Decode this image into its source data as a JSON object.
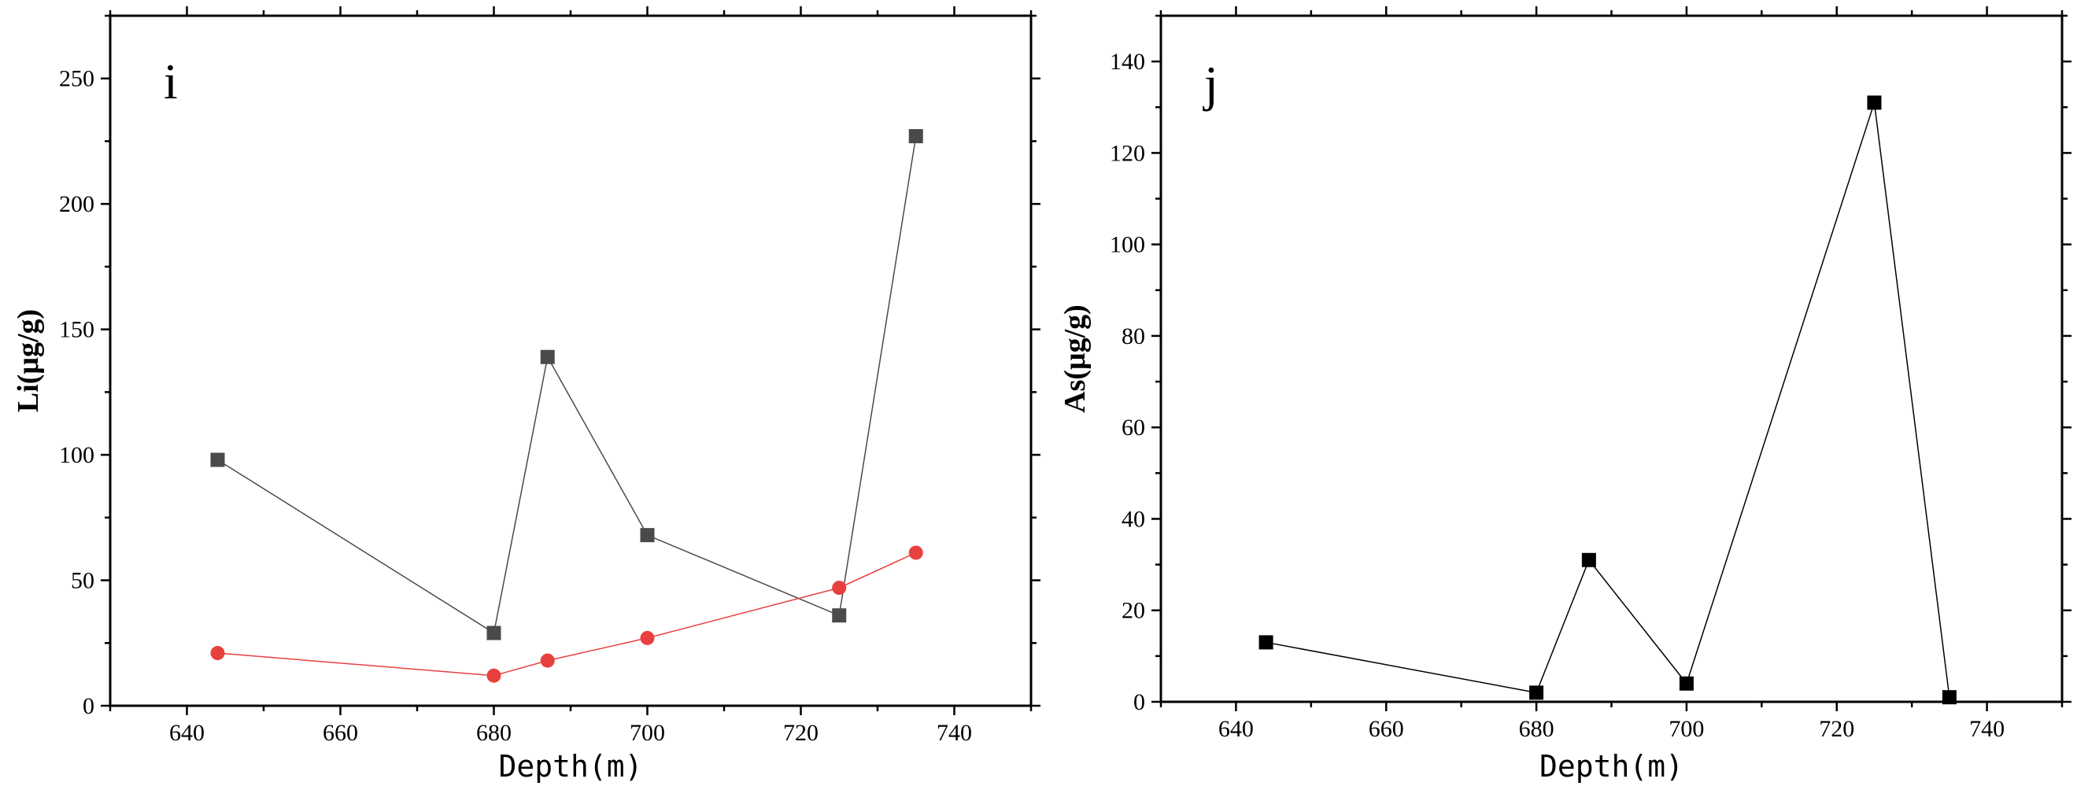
{
  "chart_data": [
    {
      "type": "line",
      "panel_label": "i",
      "xlabel": "Depth(m)",
      "ylabel": "Li(μg/g)",
      "xlim": [
        630,
        750
      ],
      "ylim": [
        0,
        275
      ],
      "xticks": [
        640,
        660,
        680,
        700,
        720,
        740
      ],
      "yticks": [
        0,
        50,
        100,
        150,
        200,
        250
      ],
      "grid": false,
      "legend": "none",
      "series": [
        {
          "color": "#4a4a4a",
          "marker": "square",
          "x": [
            644,
            680,
            687,
            700,
            725,
            735
          ],
          "y": [
            98,
            29,
            139,
            68,
            36,
            227
          ]
        },
        {
          "color": "#e8403f",
          "marker": "circle",
          "x": [
            644,
            680,
            687,
            700,
            725,
            735
          ],
          "y": [
            21,
            12,
            18,
            27,
            47,
            61
          ]
        }
      ]
    },
    {
      "type": "line",
      "panel_label": "j",
      "xlabel": "Depth(m)",
      "ylabel": "As(μg/g)",
      "xlim": [
        630,
        750
      ],
      "ylim": [
        0,
        150
      ],
      "xticks": [
        640,
        660,
        680,
        700,
        720,
        740
      ],
      "yticks": [
        0,
        20,
        40,
        60,
        80,
        100,
        120,
        140
      ],
      "grid": false,
      "legend": "none",
      "series": [
        {
          "color": "#000000",
          "marker": "square",
          "x": [
            644,
            680,
            687,
            700,
            725,
            735
          ],
          "y": [
            13,
            2,
            31,
            4,
            131,
            1
          ]
        }
      ]
    }
  ]
}
